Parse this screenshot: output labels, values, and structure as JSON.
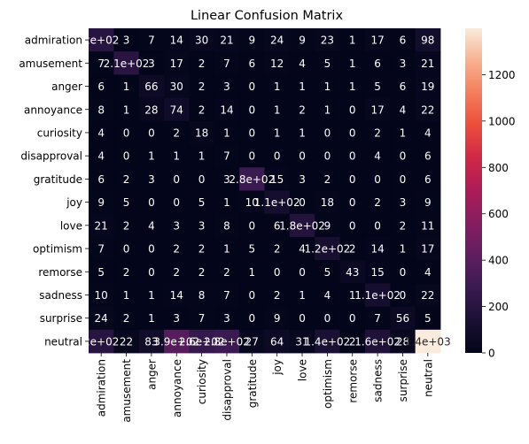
{
  "chart_data": {
    "type": "heatmap",
    "title": "Linear Confusion Matrix",
    "xlabel": "",
    "ylabel": "",
    "row_labels": [
      "admiration",
      "amusement",
      "anger",
      "annoyance",
      "curiosity",
      "disapproval",
      "gratitude",
      "joy",
      "love",
      "optimism",
      "remorse",
      "sadness",
      "surprise",
      "neutral"
    ],
    "col_labels": [
      "admiration",
      "amusement",
      "anger",
      "annoyance",
      "curiosity",
      "disapproval",
      "gratitude",
      "joy",
      "love",
      "optimism",
      "remorse",
      "sadness",
      "surprise",
      "neutral"
    ],
    "values": [
      [
        200,
        3,
        7,
        14,
        30,
        21,
        9,
        24,
        9,
        23,
        1,
        17,
        6,
        98
      ],
      [
        7,
        210,
        3,
        17,
        2,
        7,
        6,
        12,
        4,
        5,
        1,
        6,
        3,
        21
      ],
      [
        6,
        1,
        66,
        30,
        2,
        3,
        0,
        1,
        1,
        1,
        1,
        5,
        6,
        19
      ],
      [
        8,
        1,
        28,
        74,
        2,
        14,
        0,
        1,
        2,
        1,
        0,
        17,
        4,
        22
      ],
      [
        4,
        0,
        0,
        2,
        18,
        1,
        0,
        1,
        1,
        0,
        0,
        2,
        1,
        4
      ],
      [
        4,
        0,
        1,
        1,
        1,
        7,
        0,
        0,
        0,
        0,
        0,
        4,
        0,
        6
      ],
      [
        6,
        2,
        3,
        0,
        0,
        3,
        280,
        15,
        3,
        2,
        0,
        0,
        0,
        6
      ],
      [
        9,
        5,
        0,
        0,
        5,
        1,
        10,
        110,
        0,
        18,
        0,
        2,
        3,
        9
      ],
      [
        21,
        2,
        4,
        3,
        3,
        8,
        0,
        6,
        180,
        9,
        0,
        0,
        2,
        11
      ],
      [
        7,
        0,
        0,
        2,
        2,
        1,
        5,
        2,
        4,
        120,
        2,
        14,
        1,
        17
      ],
      [
        5,
        2,
        0,
        2,
        2,
        2,
        1,
        0,
        0,
        5,
        43,
        15,
        0,
        4
      ],
      [
        10,
        1,
        1,
        14,
        8,
        7,
        0,
        2,
        1,
        4,
        1,
        110,
        0,
        22
      ],
      [
        24,
        2,
        1,
        3,
        7,
        3,
        0,
        9,
        0,
        0,
        0,
        7,
        56,
        5
      ],
      [
        200,
        22,
        83,
        390,
        260,
        280,
        27,
        64,
        31,
        140,
        2,
        160,
        28,
        1400
      ]
    ],
    "cell_text": [
      [
        "2e+02",
        "3",
        "7",
        "14",
        "30",
        "21",
        "9",
        "24",
        "9",
        "23",
        "1",
        "17",
        "6",
        "98"
      ],
      [
        "7",
        "2.1e+02",
        "3",
        "17",
        "2",
        "7",
        "6",
        "12",
        "4",
        "5",
        "1",
        "6",
        "3",
        "21"
      ],
      [
        "6",
        "1",
        "66",
        "30",
        "2",
        "3",
        "0",
        "1",
        "1",
        "1",
        "1",
        "5",
        "6",
        "19"
      ],
      [
        "8",
        "1",
        "28",
        "74",
        "2",
        "14",
        "0",
        "1",
        "2",
        "1",
        "0",
        "17",
        "4",
        "22"
      ],
      [
        "4",
        "0",
        "0",
        "2",
        "18",
        "1",
        "0",
        "1",
        "1",
        "0",
        "0",
        "2",
        "1",
        "4"
      ],
      [
        "4",
        "0",
        "1",
        "1",
        "1",
        "7",
        "0",
        "0",
        "0",
        "0",
        "0",
        "4",
        "0",
        "6"
      ],
      [
        "6",
        "2",
        "3",
        "0",
        "0",
        "3",
        "2.8e+02",
        "15",
        "3",
        "2",
        "0",
        "0",
        "0",
        "6"
      ],
      [
        "9",
        "5",
        "0",
        "0",
        "5",
        "1",
        "10",
        "1.1e+02",
        "0",
        "18",
        "0",
        "2",
        "3",
        "9"
      ],
      [
        "21",
        "2",
        "4",
        "3",
        "3",
        "8",
        "0",
        "6",
        "1.8e+02",
        "9",
        "0",
        "0",
        "2",
        "11"
      ],
      [
        "7",
        "0",
        "0",
        "2",
        "2",
        "1",
        "5",
        "2",
        "4",
        "1.2e+02",
        "2",
        "14",
        "1",
        "17"
      ],
      [
        "5",
        "2",
        "0",
        "2",
        "2",
        "2",
        "1",
        "0",
        "0",
        "5",
        "43",
        "15",
        "0",
        "4"
      ],
      [
        "10",
        "1",
        "1",
        "14",
        "8",
        "7",
        "0",
        "2",
        "1",
        "4",
        "1",
        "1.1e+02",
        "0",
        "22"
      ],
      [
        "24",
        "2",
        "1",
        "3",
        "7",
        "3",
        "0",
        "9",
        "0",
        "0",
        "0",
        "7",
        "56",
        "5"
      ],
      [
        "2e+02",
        "22",
        "83",
        "3.9e+02",
        "2.6e+02",
        "2.8e+02",
        "27",
        "64",
        "31",
        "1.4e+02",
        "2",
        "1.6e+02",
        "28",
        "1.4e+03"
      ]
    ],
    "colorbar": {
      "vmin": 0,
      "vmax": 1400,
      "ticks": [
        0,
        200,
        400,
        600,
        800,
        1000,
        1200
      ],
      "colormap": "rocket"
    }
  }
}
